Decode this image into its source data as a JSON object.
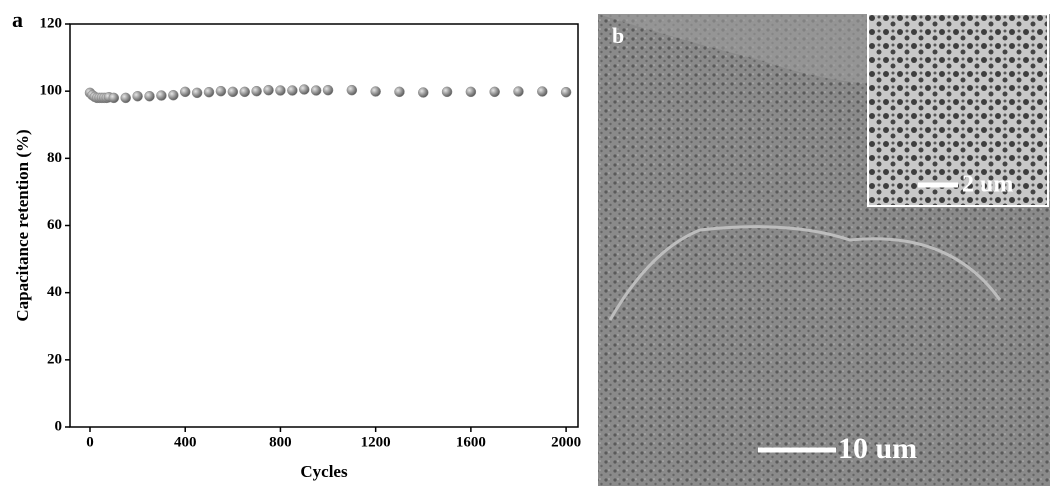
{
  "chart_data": {
    "type": "scatter",
    "panel_label": "a",
    "xlabel": "Cycles",
    "ylabel": "Capacitance retention (%)",
    "x": [
      0,
      10,
      20,
      30,
      40,
      50,
      60,
      70,
      80,
      100,
      150,
      200,
      250,
      300,
      350,
      400,
      450,
      500,
      550,
      600,
      650,
      700,
      750,
      800,
      850,
      900,
      950,
      1000,
      1100,
      1200,
      1300,
      1400,
      1500,
      1600,
      1700,
      1800,
      1900,
      2000
    ],
    "series": [
      {
        "color": "#8c8c8c",
        "values": [
          99.5,
          98.8,
          98.3,
          98.0,
          98.0,
          98.0,
          98.0,
          98.0,
          98.2,
          98.0,
          98.0,
          98.5,
          98.5,
          98.7,
          98.8,
          99.8,
          99.5,
          99.7,
          100.0,
          99.8,
          99.8,
          100.0,
          100.3,
          100.2,
          100.2,
          100.5,
          100.2,
          100.3,
          100.3,
          99.9,
          99.8,
          99.6,
          99.8,
          99.8,
          99.8,
          99.9,
          99.9,
          99.7
        ]
      }
    ],
    "xlim": [
      -84,
      2050
    ],
    "ylim": [
      0,
      120
    ],
    "xticks": [
      0,
      400,
      800,
      1200,
      1600,
      2000
    ],
    "yticks": [
      0,
      20,
      40,
      60,
      80,
      100,
      120
    ]
  },
  "image": {
    "panel_label": "b",
    "scale_bar": "10 um",
    "inset_scale_bar": "2 um"
  }
}
